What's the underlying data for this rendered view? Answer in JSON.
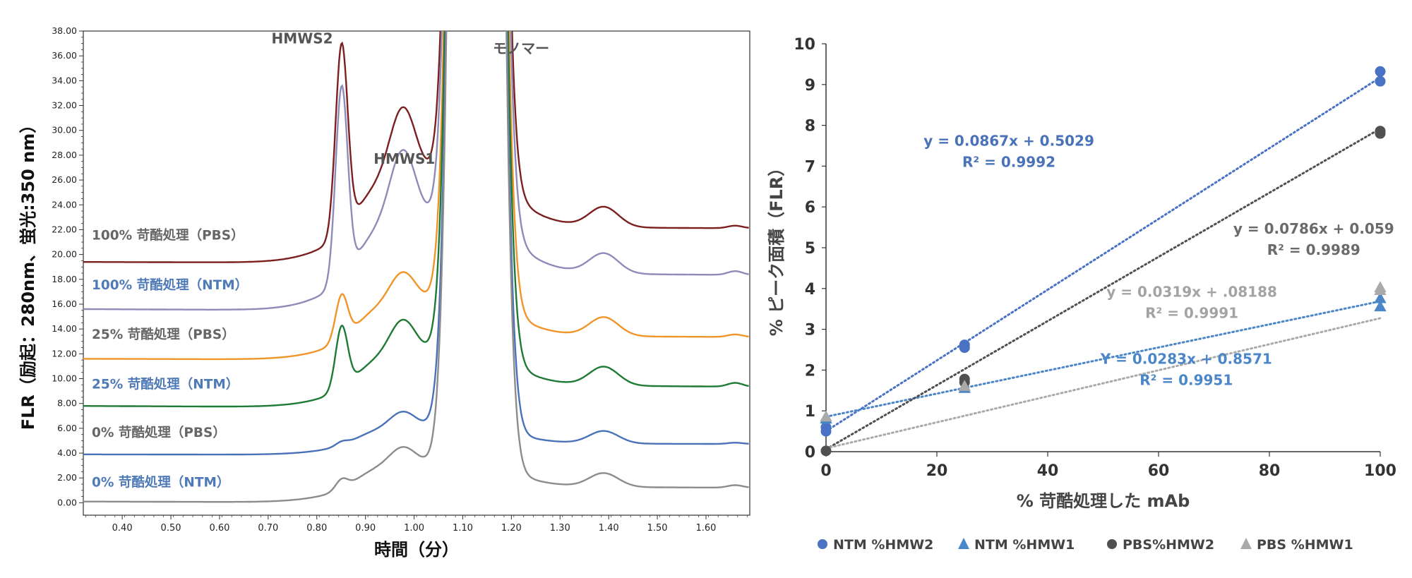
{
  "chart_data": [
    {
      "type": "line",
      "xlabel": "時間（分）",
      "ylabel": "FLR（励起：280nm、蛍光:350 nm）",
      "xlim": [
        0.32,
        1.69
      ],
      "ylim": [
        -1.0,
        38.0
      ],
      "x_ticks": [
        "0.40",
        "0.50",
        "0.60",
        "0.70",
        "0.80",
        "0.90",
        "1.00",
        "1.10",
        "1.20",
        "1.30",
        "1.40",
        "1.50",
        "1.60"
      ],
      "y_ticks": [
        "0.00",
        "2.00",
        "4.00",
        "6.00",
        "8.00",
        "10.00",
        "12.00",
        "14.00",
        "16.00",
        "18.00",
        "20.00",
        "22.00",
        "24.00",
        "26.00",
        "28.00",
        "30.00",
        "32.00",
        "34.00",
        "36.00",
        "38.00"
      ],
      "peak_labels": [
        {
          "text": "HMWS2",
          "x": 0.77,
          "y": 37.0
        },
        {
          "text": "HMWS1",
          "x": 0.98,
          "y": 27.3
        },
        {
          "text": "モノマー",
          "x": 1.22,
          "y": 36.2
        }
      ],
      "series": [
        {
          "name": "100% 苛酷処理（PBS）",
          "color": "#7B1F1F",
          "label_color": "#666666",
          "label_y": 21.2,
          "baseline": 19.4,
          "hmw2": 15.2,
          "hmw1": 5.4,
          "plateau": 7.2,
          "post_shoulder": 1.6,
          "tail": 0.2
        },
        {
          "name": "100% 苛酷処理（NTM）",
          "color": "#8E8BB8",
          "label_color": "#4F7AB8",
          "label_y": 17.2,
          "baseline": 15.6,
          "hmw2": 15.5,
          "hmw1": 5.5,
          "plateau": 7.5,
          "post_shoulder": 1.6,
          "tail": 0.3
        },
        {
          "name": "25% 苛酷処理（PBS）",
          "color": "#F0952A",
          "label_color": "#666666",
          "label_y": 13.2,
          "baseline": 11.6,
          "hmw2": 3.6,
          "hmw1": 2.3,
          "plateau": 4.8,
          "post_shoulder": 1.5,
          "tail": 0.2
        },
        {
          "name": "25% 苛酷処理（NTM）",
          "color": "#1E7A34",
          "label_color": "#4F7AB8",
          "label_y": 9.2,
          "baseline": 7.8,
          "hmw2": 5.0,
          "hmw1": 2.6,
          "plateau": 4.5,
          "post_shoulder": 1.5,
          "tail": 0.3
        },
        {
          "name": "0% 苛酷処理（PBS）",
          "color": "#4A72B8",
          "label_color": "#666666",
          "label_y": 5.3,
          "baseline": 3.9,
          "hmw2": 0.3,
          "hmw1": 1.2,
          "plateau": 2.3,
          "post_shoulder": 1.0,
          "tail": 0.1
        },
        {
          "name": "0% 苛酷処理（NTM）",
          "color": "#8C8C8C",
          "label_color": "#4F7AB8",
          "label_y": 1.3,
          "baseline": 0.1,
          "hmw2": 0.8,
          "hmw1": 1.3,
          "plateau": 3.2,
          "post_shoulder": 1.1,
          "tail": 0.2
        }
      ]
    },
    {
      "type": "scatter",
      "xlabel": "% 苛酷処理した mAb",
      "ylabel": "% ピーク面積（FLR）",
      "xlim": [
        0,
        100
      ],
      "ylim": [
        0,
        10
      ],
      "x_ticks": [
        0,
        20,
        40,
        60,
        80,
        100
      ],
      "y_ticks": [
        0,
        1,
        2,
        3,
        4,
        5,
        6,
        7,
        8,
        9,
        10
      ],
      "legend_position": "bottom",
      "series": [
        {
          "name": "NTM %HMW2",
          "marker": "circle",
          "color": "#4A72C4",
          "x": [
            0,
            0,
            25,
            25,
            100,
            100
          ],
          "y": [
            0.5,
            0.6,
            2.55,
            2.62,
            9.08,
            9.32
          ],
          "fit": {
            "slope": 0.0867,
            "intercept": 0.5029
          },
          "equation": "y = 0.0867x + 0.5029",
          "r2": "R² = 0.9992",
          "eq_color": "#4A72B8",
          "eq_pos": [
            33,
            7.5
          ]
        },
        {
          "name": "NTM %HMW1",
          "marker": "triangle",
          "color": "#4A86C8",
          "x": [
            0,
            25,
            100,
            100
          ],
          "y": [
            0.8,
            1.55,
            3.55,
            3.75
          ],
          "fit": {
            "slope": 0.0283,
            "intercept": 0.8571
          },
          "equation": "Y = 0.0283x + 0.8571",
          "r2": "R² = 0.9951",
          "eq_color": "#4A86C8",
          "eq_pos": [
            65,
            2.15
          ]
        },
        {
          "name": "PBS%HMW2",
          "marker": "circle",
          "color": "#505050",
          "x": [
            0,
            25,
            25,
            100,
            100
          ],
          "y": [
            0.02,
            1.7,
            1.78,
            7.8,
            7.86
          ],
          "fit": {
            "slope": 0.0786,
            "intercept": 0.059
          },
          "equation": "y = 0.0786x + 0.059",
          "r2": "R² = 0.9989",
          "eq_color": "#6A6A6A",
          "eq_pos": [
            88,
            5.35
          ]
        },
        {
          "name": "PBS %HMW1",
          "marker": "triangle",
          "color": "#AAAAAA",
          "x": [
            0,
            25,
            100,
            100
          ],
          "y": [
            0.85,
            1.6,
            3.95,
            4.02
          ],
          "fit": {
            "slope": 0.0319,
            "intercept": 0.08188
          },
          "equation": "y = 0.0319x + .08188",
          "r2": "R² = 0.9991",
          "eq_color": "#A3A3A3",
          "eq_pos": [
            66,
            3.8
          ]
        }
      ]
    }
  ]
}
